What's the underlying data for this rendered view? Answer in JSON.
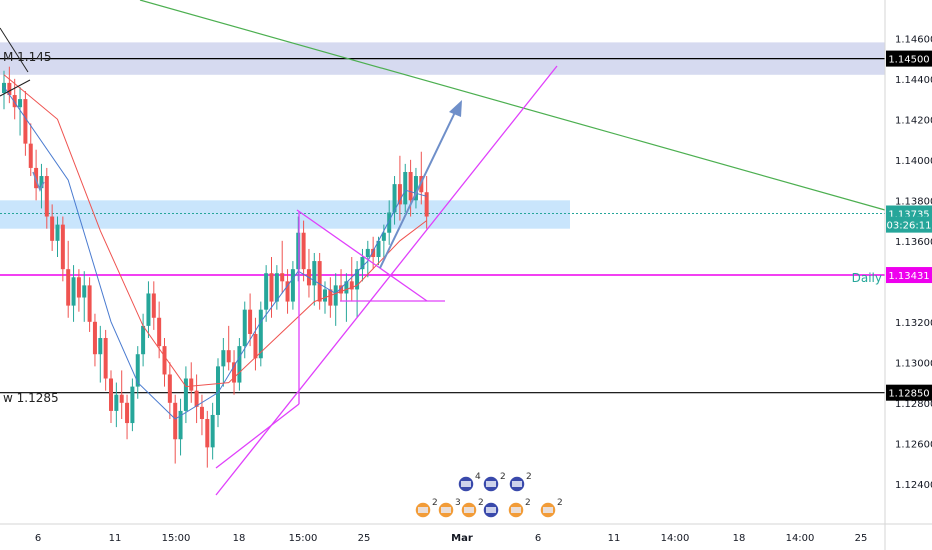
{
  "chart_data": {
    "type": "candlestick",
    "ylim": [
      1.1232,
      1.1474
    ],
    "y_ticks": [
      "1.12400",
      "1.12600",
      "1.12800",
      "1.13000",
      "1.13200",
      "1.13600",
      "1.13800",
      "1.14000",
      "1.14200",
      "1.14400",
      "1.14600"
    ],
    "x_ticks": [
      "6",
      "11",
      "15:00",
      "18",
      "15:00",
      "25",
      "Mar",
      "6",
      "11",
      "14:00",
      "18",
      "14:00",
      "25"
    ],
    "price_tags": [
      {
        "label": "1.14500",
        "value": 1.145,
        "bg": "#000000",
        "fg": "#ffffff"
      },
      {
        "label": "1.13735",
        "value": 1.13735,
        "bg": "#26a69a",
        "fg": "#ffffff"
      },
      {
        "label": "03:26:11",
        "value": 1.1368,
        "bg": "#26a69a",
        "fg": "#ffffff"
      },
      {
        "label": "1.13431",
        "value": 1.13431,
        "bg": "#ee00ee",
        "fg": "#ffffff"
      },
      {
        "label": "1.12850",
        "value": 1.1285,
        "bg": "#000000",
        "fg": "#ffffff"
      }
    ],
    "annotations": {
      "monthly_label": "M 1.145",
      "weekly_label": "w 1.1285",
      "daily_label": "Daily"
    },
    "candles": [
      [
        1.1433,
        1.1444,
        1.1425,
        1.1438
      ],
      [
        1.1438,
        1.1446,
        1.1428,
        1.1432
      ],
      [
        1.1432,
        1.144,
        1.142,
        1.1426
      ],
      [
        1.1426,
        1.1436,
        1.1412,
        1.143
      ],
      [
        1.143,
        1.1434,
        1.1402,
        1.1408
      ],
      [
        1.1408,
        1.1418,
        1.1392,
        1.1396
      ],
      [
        1.1396,
        1.1405,
        1.138,
        1.1386
      ],
      [
        1.1386,
        1.1398,
        1.1376,
        1.1392
      ],
      [
        1.1392,
        1.1396,
        1.1366,
        1.1372
      ],
      [
        1.1372,
        1.1378,
        1.1355,
        1.136
      ],
      [
        1.136,
        1.1372,
        1.1352,
        1.1368
      ],
      [
        1.1368,
        1.1372,
        1.134,
        1.1346
      ],
      [
        1.1346,
        1.136,
        1.1322,
        1.1328
      ],
      [
        1.1328,
        1.1348,
        1.132,
        1.1342
      ],
      [
        1.1342,
        1.1346,
        1.1325,
        1.1332
      ],
      [
        1.1332,
        1.1345,
        1.132,
        1.1338
      ],
      [
        1.1338,
        1.1342,
        1.1315,
        1.132
      ],
      [
        1.132,
        1.1324,
        1.1298,
        1.1304
      ],
      [
        1.1304,
        1.1318,
        1.129,
        1.1312
      ],
      [
        1.1312,
        1.1316,
        1.1286,
        1.1292
      ],
      [
        1.1292,
        1.1296,
        1.127,
        1.1276
      ],
      [
        1.1276,
        1.129,
        1.1268,
        1.1284
      ],
      [
        1.1284,
        1.1296,
        1.1272,
        1.128
      ],
      [
        1.128,
        1.1284,
        1.1262,
        1.127
      ],
      [
        1.127,
        1.1292,
        1.1266,
        1.1288
      ],
      [
        1.1288,
        1.1308,
        1.1282,
        1.1304
      ],
      [
        1.1304,
        1.1324,
        1.1298,
        1.1318
      ],
      [
        1.1318,
        1.134,
        1.1312,
        1.1334
      ],
      [
        1.1334,
        1.134,
        1.1316,
        1.1322
      ],
      [
        1.1322,
        1.133,
        1.1302,
        1.1308
      ],
      [
        1.1308,
        1.1312,
        1.1288,
        1.1294
      ],
      [
        1.1294,
        1.13,
        1.1272,
        1.128
      ],
      [
        1.128,
        1.1284,
        1.125,
        1.1262
      ],
      [
        1.1262,
        1.1282,
        1.1254,
        1.1276
      ],
      [
        1.1276,
        1.1298,
        1.127,
        1.1292
      ],
      [
        1.1292,
        1.13,
        1.128,
        1.1286
      ],
      [
        1.1286,
        1.1294,
        1.127,
        1.1278
      ],
      [
        1.1278,
        1.1284,
        1.1264,
        1.1272
      ],
      [
        1.1272,
        1.1276,
        1.1248,
        1.1258
      ],
      [
        1.1258,
        1.128,
        1.1252,
        1.1274
      ],
      [
        1.1274,
        1.1302,
        1.1268,
        1.1298
      ],
      [
        1.1298,
        1.1312,
        1.1288,
        1.1306
      ],
      [
        1.1306,
        1.1318,
        1.1296,
        1.13
      ],
      [
        1.13,
        1.1306,
        1.1284,
        1.129
      ],
      [
        1.129,
        1.1312,
        1.1286,
        1.1308
      ],
      [
        1.1308,
        1.133,
        1.1302,
        1.1326
      ],
      [
        1.1326,
        1.1334,
        1.1308,
        1.1314
      ],
      [
        1.1314,
        1.1322,
        1.1296,
        1.1302
      ],
      [
        1.1302,
        1.133,
        1.1298,
        1.1326
      ],
      [
        1.1326,
        1.1348,
        1.132,
        1.1344
      ],
      [
        1.1344,
        1.1352,
        1.1322,
        1.133
      ],
      [
        1.133,
        1.1348,
        1.1326,
        1.1344
      ],
      [
        1.1344,
        1.136,
        1.1334,
        1.134
      ],
      [
        1.134,
        1.1346,
        1.1324,
        1.133
      ],
      [
        1.133,
        1.135,
        1.1326,
        1.1346
      ],
      [
        1.1346,
        1.1372,
        1.134,
        1.1364
      ],
      [
        1.1364,
        1.137,
        1.134,
        1.1346
      ],
      [
        1.1346,
        1.1356,
        1.1332,
        1.1338
      ],
      [
        1.1338,
        1.1354,
        1.1328,
        1.135
      ],
      [
        1.135,
        1.1354,
        1.1326,
        1.133
      ],
      [
        1.133,
        1.134,
        1.1324,
        1.1336
      ],
      [
        1.1336,
        1.1342,
        1.1322,
        1.1328
      ],
      [
        1.1328,
        1.1344,
        1.1318,
        1.1338
      ],
      [
        1.1338,
        1.1346,
        1.133,
        1.1334
      ],
      [
        1.1334,
        1.1344,
        1.132,
        1.134
      ],
      [
        1.134,
        1.1352,
        1.133,
        1.1336
      ],
      [
        1.1336,
        1.135,
        1.1322,
        1.1346
      ],
      [
        1.1346,
        1.1356,
        1.134,
        1.1352
      ],
      [
        1.1352,
        1.136,
        1.1342,
        1.1356
      ],
      [
        1.1356,
        1.1362,
        1.1346,
        1.1352
      ],
      [
        1.1352,
        1.1362,
        1.1348,
        1.136
      ],
      [
        1.136,
        1.1368,
        1.1352,
        1.1364
      ],
      [
        1.1364,
        1.138,
        1.1358,
        1.1374
      ],
      [
        1.1374,
        1.1392,
        1.1368,
        1.1388
      ],
      [
        1.1388,
        1.1402,
        1.137,
        1.1378
      ],
      [
        1.1378,
        1.1398,
        1.1374,
        1.1394
      ],
      [
        1.1394,
        1.14,
        1.1372,
        1.138
      ],
      [
        1.138,
        1.1396,
        1.1376,
        1.1392
      ],
      [
        1.1392,
        1.1404,
        1.1378,
        1.1384
      ],
      [
        1.1384,
        1.1392,
        1.1366,
        1.1372
      ]
    ],
    "series": [
      {
        "name": "",
        "color": "#4a7bd0",
        "points": [
          [
            0,
            1.1436
          ],
          [
            12,
            1.139
          ],
          [
            20,
            1.132
          ],
          [
            25,
            1.129
          ],
          [
            32,
            1.1272
          ],
          [
            40,
            1.1285
          ],
          [
            48,
            1.132
          ],
          [
            55,
            1.1345
          ],
          [
            62,
            1.1334
          ],
          [
            68,
            1.135
          ],
          [
            75,
            1.1385
          ],
          [
            79,
            1.1382
          ]
        ]
      },
      {
        "name": "",
        "color": "#ef5350",
        "points": [
          [
            0,
            1.1442
          ],
          [
            10,
            1.142
          ],
          [
            18,
            1.1365
          ],
          [
            26,
            1.1318
          ],
          [
            34,
            1.1288
          ],
          [
            42,
            1.129
          ],
          [
            50,
            1.131
          ],
          [
            58,
            1.133
          ],
          [
            66,
            1.1338
          ],
          [
            74,
            1.136
          ],
          [
            79,
            1.137
          ]
        ]
      }
    ]
  }
}
